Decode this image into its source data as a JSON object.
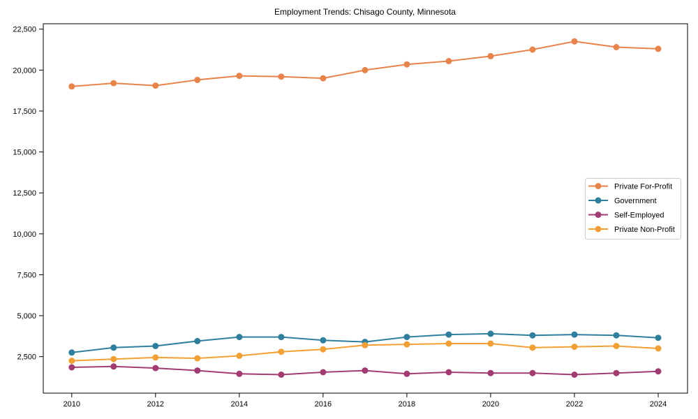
{
  "figure": {
    "background_color": "#ffffff",
    "axis_color": "#000000",
    "legend_border_color": "#cccccc",
    "legend_background": "#ffffff"
  },
  "chart_data": {
    "type": "line",
    "title": "Employment Trends: Chisago County, Minnesota",
    "xlabel": "",
    "ylabel": "",
    "grid": false,
    "legend_position": "center right",
    "xlim": [
      2009.32,
      2024.7
    ],
    "ylim": [
      270,
      22830
    ],
    "x": [
      2010,
      2011,
      2012,
      2013,
      2014,
      2015,
      2016,
      2017,
      2018,
      2019,
      2020,
      2021,
      2022,
      2023,
      2024
    ],
    "x_ticks": [
      2010,
      2012,
      2014,
      2016,
      2018,
      2020,
      2022,
      2024
    ],
    "x_tick_labels": [
      "2010",
      "2012",
      "2014",
      "2016",
      "2018",
      "2020",
      "2022",
      "2024"
    ],
    "y_ticks": [
      2500,
      5000,
      7500,
      10000,
      12500,
      15000,
      17500,
      20000,
      22500
    ],
    "y_tick_labels": [
      "2,500",
      "5,000",
      "7,500",
      "10,000",
      "12,500",
      "15,000",
      "17,500",
      "20,000",
      "22,500"
    ],
    "series": [
      {
        "name": "Private For-Profit",
        "color": "#e8834a",
        "values": [
          19000,
          19200,
          19050,
          19400,
          19650,
          19600,
          19500,
          20000,
          20350,
          20550,
          20850,
          21250,
          21750,
          21400,
          21300
        ]
      },
      {
        "name": "Government",
        "color": "#2e7f9e",
        "values": [
          2750,
          3050,
          3150,
          3450,
          3700,
          3700,
          3500,
          3400,
          3700,
          3850,
          3900,
          3800,
          3850,
          3800,
          3650
        ]
      },
      {
        "name": "Self-Employed",
        "color": "#a23b72",
        "values": [
          1850,
          1900,
          1800,
          1650,
          1450,
          1400,
          1550,
          1650,
          1450,
          1550,
          1500,
          1500,
          1400,
          1500,
          1600
        ]
      },
      {
        "name": "Private Non-Profit",
        "color": "#f2a033",
        "values": [
          2250,
          2350,
          2450,
          2400,
          2550,
          2800,
          2950,
          3200,
          3250,
          3300,
          3300,
          3050,
          3100,
          3150,
          3000
        ]
      }
    ]
  }
}
